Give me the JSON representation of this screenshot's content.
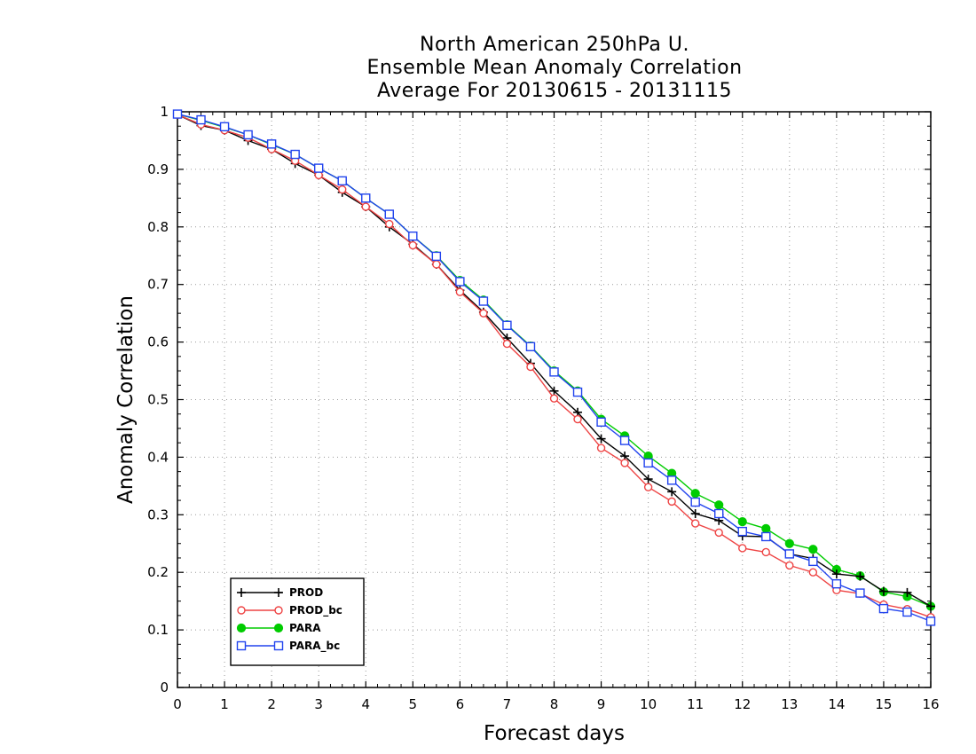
{
  "chart_data": {
    "type": "line",
    "title": [
      "North American 250hPa U.",
      "Ensemble Mean Anomaly Correlation",
      "Average For 20130615 - 20131115"
    ],
    "xlabel": "Forecast days",
    "ylabel": "Anomaly Correlation",
    "xlim": [
      0,
      16
    ],
    "ylim": [
      0,
      1
    ],
    "xticks": [
      "0",
      "1",
      "2",
      "3",
      "4",
      "5",
      "6",
      "7",
      "8",
      "9",
      "10",
      "11",
      "12",
      "13",
      "14",
      "15",
      "16"
    ],
    "yticks": [
      "0",
      "0.1",
      "0.2",
      "0.3",
      "0.4",
      "0.5",
      "0.6",
      "0.7",
      "0.8",
      "0.9",
      "1"
    ],
    "grid": true,
    "legend_position": "bottom-left",
    "x": [
      0,
      0.5,
      1,
      1.5,
      2,
      2.5,
      3,
      3.5,
      4,
      4.5,
      5,
      5.5,
      6,
      6.5,
      7,
      7.5,
      8,
      8.5,
      9,
      9.5,
      10,
      10.5,
      11,
      11.5,
      12,
      12.5,
      13,
      13.5,
      14,
      14.5,
      15,
      15.5,
      16
    ],
    "series": [
      {
        "name": "PROD",
        "color": "#000000",
        "marker": "plus",
        "values": [
          0.995,
          0.976,
          0.968,
          0.95,
          0.935,
          0.91,
          0.89,
          0.86,
          0.835,
          0.8,
          0.77,
          0.735,
          0.69,
          0.652,
          0.607,
          0.563,
          0.515,
          0.478,
          0.432,
          0.402,
          0.362,
          0.34,
          0.302,
          0.29,
          0.263,
          0.262,
          0.232,
          0.224,
          0.197,
          0.193,
          0.167,
          0.165,
          0.141
        ]
      },
      {
        "name": "PROD_bc",
        "color": "#ee4444",
        "marker": "open-circle",
        "values": [
          0.995,
          0.978,
          0.968,
          0.955,
          0.935,
          0.915,
          0.89,
          0.865,
          0.835,
          0.805,
          0.768,
          0.735,
          0.687,
          0.65,
          0.597,
          0.557,
          0.502,
          0.466,
          0.416,
          0.39,
          0.348,
          0.323,
          0.285,
          0.269,
          0.242,
          0.235,
          0.212,
          0.2,
          0.169,
          0.163,
          0.144,
          0.136,
          0.122
        ]
      },
      {
        "name": "PARA",
        "color": "#00cc00",
        "marker": "filled-circle",
        "values": [
          0.996,
          0.985,
          0.973,
          0.96,
          0.943,
          0.926,
          0.902,
          0.88,
          0.85,
          0.822,
          0.784,
          0.75,
          0.707,
          0.673,
          0.63,
          0.593,
          0.55,
          0.515,
          0.466,
          0.437,
          0.402,
          0.372,
          0.337,
          0.317,
          0.288,
          0.276,
          0.25,
          0.24,
          0.205,
          0.194,
          0.166,
          0.158,
          0.141
        ]
      },
      {
        "name": "PARA_bc",
        "color": "#2244ee",
        "marker": "open-square",
        "values": [
          0.996,
          0.986,
          0.974,
          0.96,
          0.944,
          0.926,
          0.902,
          0.88,
          0.85,
          0.822,
          0.784,
          0.749,
          0.705,
          0.671,
          0.629,
          0.592,
          0.548,
          0.513,
          0.461,
          0.429,
          0.39,
          0.36,
          0.322,
          0.302,
          0.271,
          0.262,
          0.232,
          0.219,
          0.18,
          0.164,
          0.137,
          0.131,
          0.115
        ]
      }
    ]
  }
}
